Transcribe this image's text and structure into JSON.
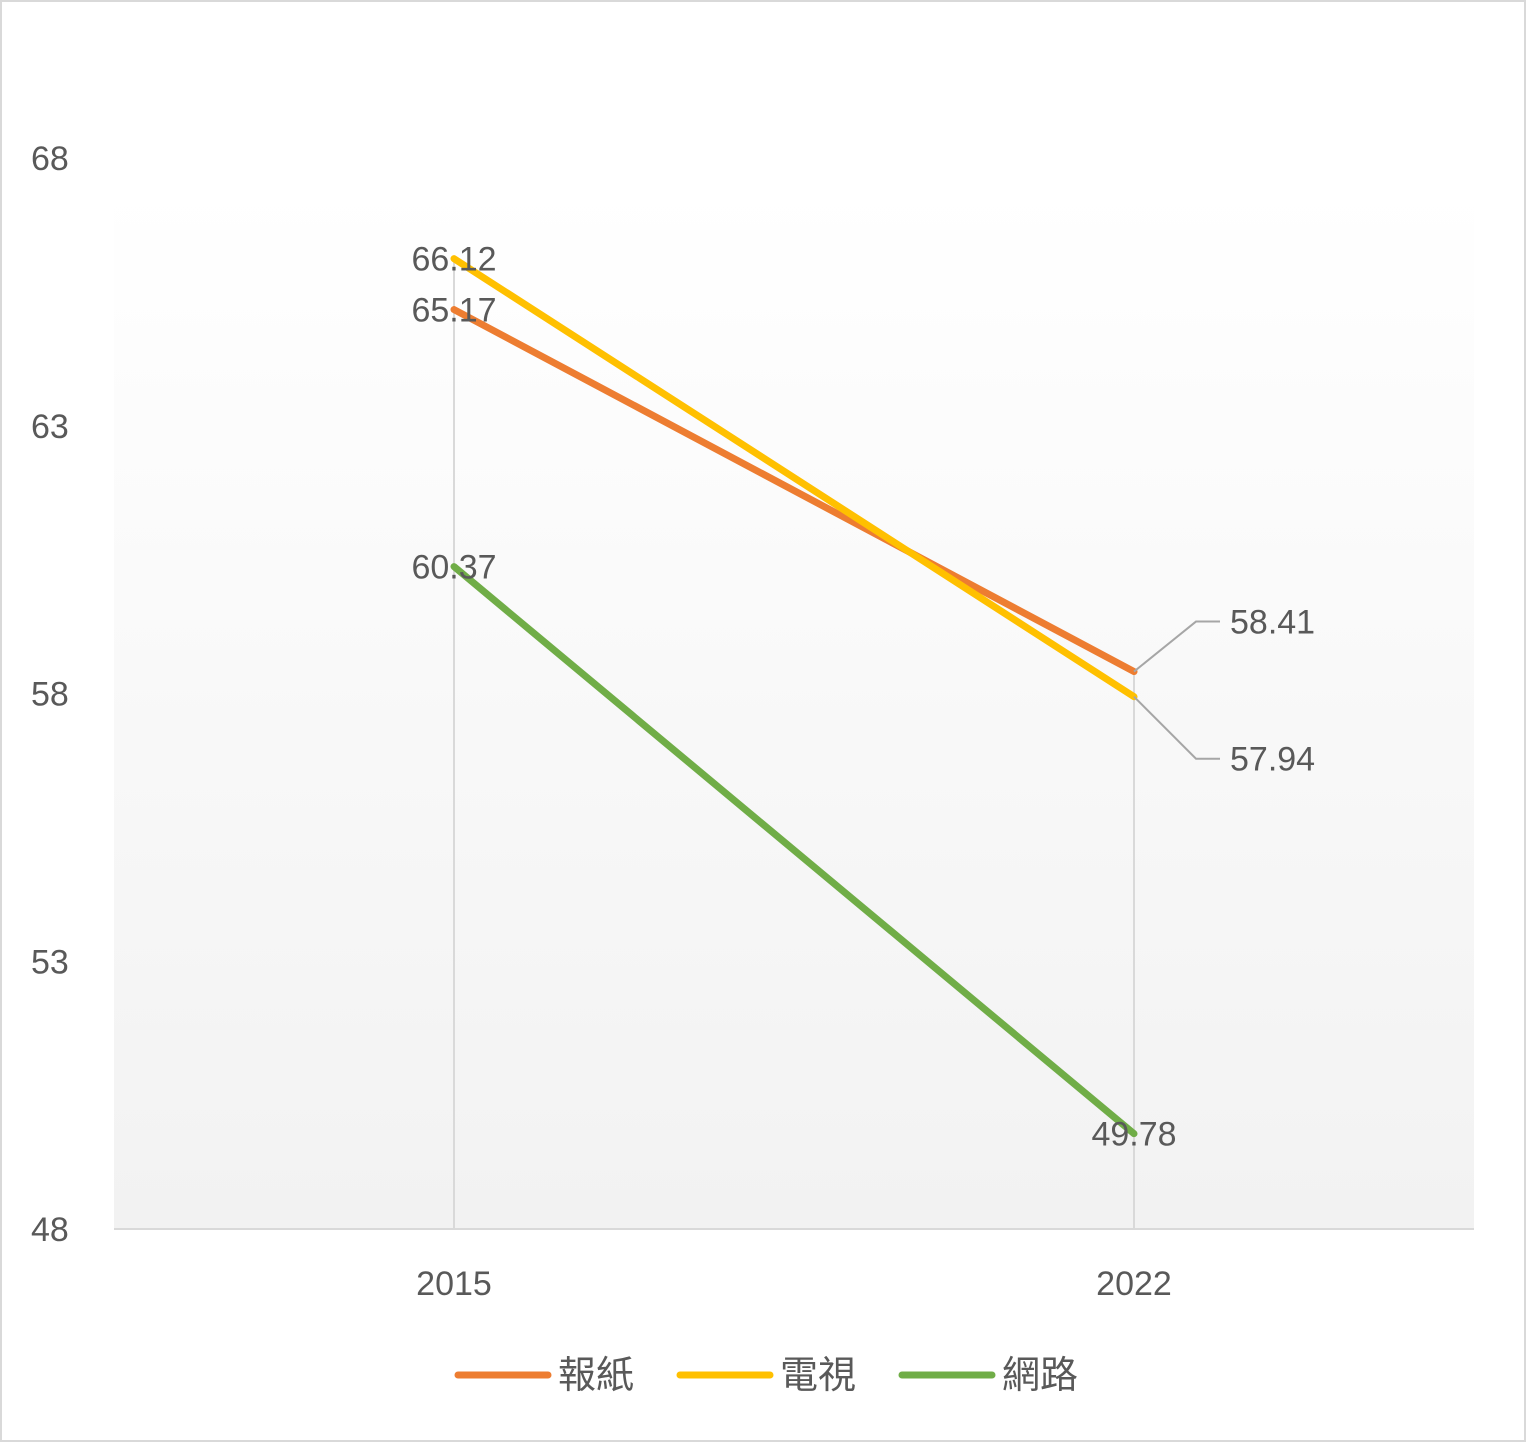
{
  "chart_data": {
    "type": "line",
    "title": "",
    "xlabel": "",
    "ylabel": "",
    "categories": [
      "2015",
      "2022"
    ],
    "ylim": [
      48,
      68
    ],
    "yticks": [
      48,
      53,
      58,
      63,
      68
    ],
    "grid": false,
    "legend_position": "bottom",
    "series": [
      {
        "name": "報紙",
        "values": [
          65.17,
          58.41
        ],
        "color": "#ED7D31",
        "labels": [
          "65.17",
          "58.41"
        ]
      },
      {
        "name": "電視",
        "values": [
          66.12,
          57.94
        ],
        "color": "#FFC000",
        "labels": [
          "66.12",
          "57.94"
        ]
      },
      {
        "name": "網路",
        "values": [
          60.37,
          49.78
        ],
        "color": "#70AD47",
        "labels": [
          "60.37",
          "49.78"
        ]
      }
    ]
  }
}
